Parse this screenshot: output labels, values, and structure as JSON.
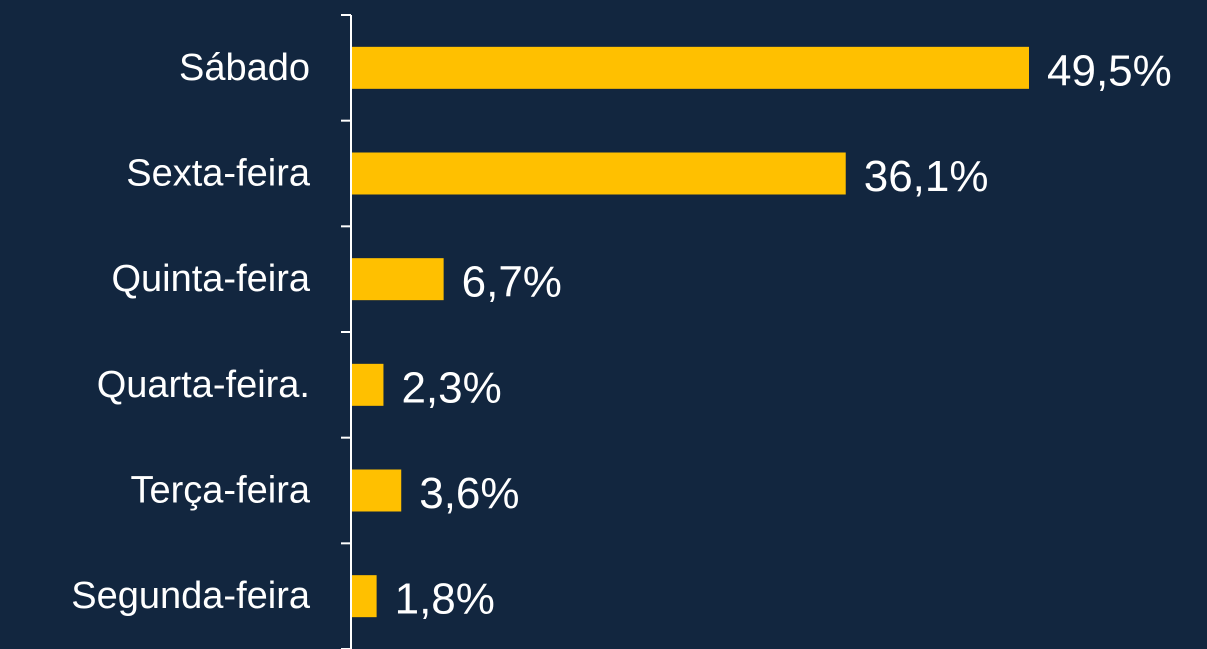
{
  "chart_data": {
    "type": "hbar",
    "categories": [
      "Sábado",
      "Sexta-feira",
      "Quinta-feira",
      "Quarta-feira.",
      "Terça-feira",
      "Segunda-feira"
    ],
    "values": [
      49.5,
      36.1,
      6.7,
      2.3,
      3.6,
      1.8
    ],
    "value_labels": [
      "49,5%",
      "36,1%",
      "6,7%",
      "2,3%",
      "3,6%",
      "1,8%"
    ],
    "color": "#ffc000"
  }
}
